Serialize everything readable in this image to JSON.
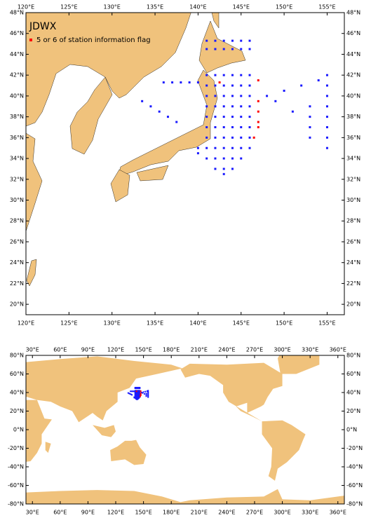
{
  "maps": [
    {
      "title": "JDWX",
      "legend": "5 or 6 of station information flag",
      "xlim": [
        120,
        157
      ],
      "ylim": [
        19,
        48
      ],
      "xticks": [
        {
          "value": 120,
          "label": "120°E"
        },
        {
          "value": 125,
          "label": "125°E"
        },
        {
          "value": 130,
          "label": "130°E"
        },
        {
          "value": 135,
          "label": "135°E"
        },
        {
          "value": 140,
          "label": "140°E"
        },
        {
          "value": 145,
          "label": "145°E"
        },
        {
          "value": 150,
          "label": "150°E"
        },
        {
          "value": 155,
          "label": "155°E"
        }
      ],
      "yticks": [
        {
          "value": 20,
          "label": "20°N"
        },
        {
          "value": 22,
          "label": "22°N"
        },
        {
          "value": 24,
          "label": "24°N"
        },
        {
          "value": 26,
          "label": "26°N"
        },
        {
          "value": 28,
          "label": "28°N"
        },
        {
          "value": 30,
          "label": "30°N"
        },
        {
          "value": 32,
          "label": "32°N"
        },
        {
          "value": 34,
          "label": "34°N"
        },
        {
          "value": 36,
          "label": "36°N"
        },
        {
          "value": 38,
          "label": "38°N"
        },
        {
          "value": 40,
          "label": "40°N"
        },
        {
          "value": 42,
          "label": "42°N"
        },
        {
          "value": 44,
          "label": "44°N"
        },
        {
          "value": 46,
          "label": "46°N"
        },
        {
          "value": 48,
          "label": "48°N"
        }
      ]
    },
    {
      "xlim": [
        23,
        367
      ],
      "ylim": [
        -80,
        80
      ],
      "xticks": [
        {
          "value": 30,
          "label": "30°E"
        },
        {
          "value": 60,
          "label": "60°E"
        },
        {
          "value": 90,
          "label": "90°E"
        },
        {
          "value": 120,
          "label": "120°E"
        },
        {
          "value": 150,
          "label": "150°E"
        },
        {
          "value": 180,
          "label": "180°E"
        },
        {
          "value": 210,
          "label": "210°E"
        },
        {
          "value": 240,
          "label": "240°E"
        },
        {
          "value": 270,
          "label": "270°E"
        },
        {
          "value": 300,
          "label": "300°E"
        },
        {
          "value": 330,
          "label": "330°E"
        },
        {
          "value": 360,
          "label": "360°E"
        }
      ],
      "yticks": [
        {
          "value": -80,
          "label": "-80°N"
        },
        {
          "value": -60,
          "label": "-60°N"
        },
        {
          "value": -40,
          "label": "-40°N"
        },
        {
          "value": -20,
          "label": "-20°N"
        },
        {
          "value": 0,
          "label": "0°N"
        },
        {
          "value": 20,
          "label": "20°N"
        },
        {
          "value": 40,
          "label": "40°N"
        },
        {
          "value": 60,
          "label": "60°N"
        },
        {
          "value": 80,
          "label": "80°N"
        }
      ]
    }
  ],
  "station_color": "#1a1aff",
  "flag_color": "#ff0000",
  "stations": [
    [
      141,
      34
    ],
    [
      141,
      35
    ],
    [
      141,
      36
    ],
    [
      141,
      37
    ],
    [
      141,
      38
    ],
    [
      141,
      39
    ],
    [
      141,
      40
    ],
    [
      141,
      41
    ],
    [
      141,
      42
    ],
    [
      142,
      34
    ],
    [
      142,
      35
    ],
    [
      142,
      36
    ],
    [
      142,
      37
    ],
    [
      142,
      38
    ],
    [
      142,
      39
    ],
    [
      142,
      40
    ],
    [
      142,
      41
    ],
    [
      142,
      42
    ],
    [
      143,
      34
    ],
    [
      143,
      35
    ],
    [
      143,
      36
    ],
    [
      143,
      37
    ],
    [
      143,
      38
    ],
    [
      143,
      39
    ],
    [
      143,
      40
    ],
    [
      143,
      41
    ],
    [
      143,
      42
    ],
    [
      144,
      34
    ],
    [
      144,
      35
    ],
    [
      144,
      36
    ],
    [
      144,
      37
    ],
    [
      144,
      38
    ],
    [
      144,
      39
    ],
    [
      144,
      40
    ],
    [
      144,
      41
    ],
    [
      144,
      42
    ],
    [
      145,
      34
    ],
    [
      145,
      35
    ],
    [
      145,
      36
    ],
    [
      145,
      37
    ],
    [
      145,
      38
    ],
    [
      145,
      39
    ],
    [
      145,
      40
    ],
    [
      145,
      41
    ],
    [
      145,
      42
    ],
    [
      146,
      35
    ],
    [
      146,
      36
    ],
    [
      146,
      37
    ],
    [
      146,
      38
    ],
    [
      146,
      39
    ],
    [
      146,
      40
    ],
    [
      146,
      41
    ],
    [
      146,
      42
    ],
    [
      140,
      34.5
    ],
    [
      140,
      35
    ],
    [
      143,
      33
    ],
    [
      143,
      32.5
    ],
    [
      142,
      33
    ],
    [
      144,
      33
    ],
    [
      141,
      44.5
    ],
    [
      142,
      44.5
    ],
    [
      143,
      44.5
    ],
    [
      144,
      44.5
    ],
    [
      145,
      44.5
    ],
    [
      146,
      44.5
    ],
    [
      141,
      45.3
    ],
    [
      142,
      45.3
    ],
    [
      143,
      45.3
    ],
    [
      144,
      45.3
    ],
    [
      145,
      45.3
    ],
    [
      146,
      45.3
    ],
    [
      136,
      41.3
    ],
    [
      137,
      41.3
    ],
    [
      138,
      41.3
    ],
    [
      139,
      41.3
    ],
    [
      140,
      41.3
    ],
    [
      133.5,
      39.5
    ],
    [
      134.5,
      39
    ],
    [
      135.5,
      38.5
    ],
    [
      136.5,
      38
    ],
    [
      137.5,
      37.5
    ],
    [
      148,
      40
    ],
    [
      150,
      40.5
    ],
    [
      152,
      41
    ],
    [
      154,
      41.5
    ],
    [
      155,
      42
    ],
    [
      155,
      41
    ],
    [
      155,
      40
    ],
    [
      155,
      39
    ],
    [
      155,
      38
    ],
    [
      155,
      37
    ],
    [
      155,
      36
    ],
    [
      155,
      35
    ],
    [
      153,
      39
    ],
    [
      153,
      38
    ],
    [
      153,
      37
    ],
    [
      153,
      36
    ],
    [
      149,
      39.5
    ],
    [
      151,
      38.5
    ]
  ],
  "flagged": [
    [
      147,
      41.5
    ],
    [
      147,
      39.5
    ],
    [
      147,
      38.5
    ],
    [
      147,
      37.5
    ],
    [
      147,
      37
    ],
    [
      146.5,
      36
    ],
    [
      142.5,
      41.3
    ]
  ]
}
